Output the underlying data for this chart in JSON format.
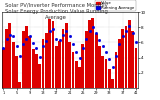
{
  "title": "Solar PV/Inverter Performance Monthly Solar Energy Production Value Running Average",
  "bar_values": [
    5.2,
    7.8,
    8.5,
    6.1,
    4.2,
    0.8,
    7.5,
    8.2,
    6.8,
    5.1,
    4.5,
    3.2,
    6.5,
    7.2,
    9.1,
    8.8,
    5.5,
    6.2,
    7.8,
    8.5,
    6.1,
    4.8,
    3.5,
    2.8,
    5.8,
    7.5,
    8.9,
    9.2,
    7.1,
    5.5,
    4.2,
    3.8,
    2.5,
    1.2,
    4.8,
    6.5,
    7.8,
    8.2,
    9.0,
    7.5,
    5.2
  ],
  "avg_values": [
    5.2,
    6.5,
    7.0,
    6.8,
    5.5,
    4.2,
    5.8,
    6.5,
    6.8,
    5.9,
    5.2,
    4.1,
    5.5,
    6.2,
    7.5,
    7.8,
    6.5,
    6.3,
    7.0,
    7.5,
    6.8,
    5.8,
    4.8,
    3.9,
    5.2,
    6.5,
    7.5,
    8.0,
    7.2,
    6.3,
    5.5,
    4.8,
    3.8,
    2.8,
    4.2,
    5.8,
    6.8,
    7.5,
    8.2,
    7.2,
    6.0
  ],
  "bar_color": "#dd0000",
  "avg_color": "#0000dd",
  "bg_color": "#ffffff",
  "grid_color": "#aaaaaa",
  "ylim": [
    0,
    10
  ],
  "yticks": [
    2,
    4,
    6,
    8,
    10
  ],
  "ytick_labels": [
    "2",
    "4",
    "6",
    "8",
    "10"
  ],
  "title_fontsize": 3.8,
  "legend_items": [
    "Value",
    "Running Average"
  ],
  "legend_colors": [
    "#dd0000",
    "#0000dd"
  ]
}
